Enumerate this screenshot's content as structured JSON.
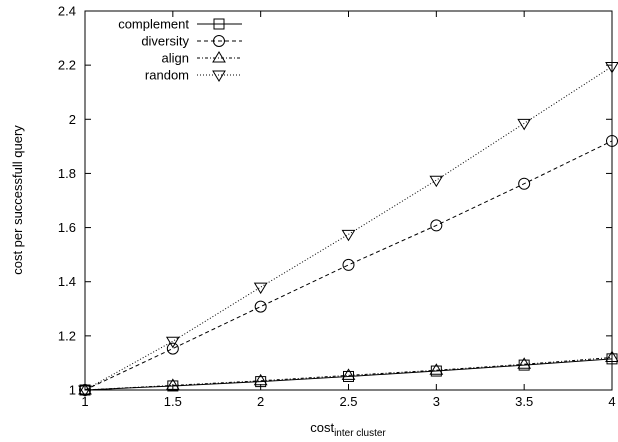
{
  "chart_data": {
    "type": "line",
    "xlabel": "cost",
    "xlabel_subscript": "inter cluster",
    "ylabel": "cost per successfull query",
    "xlim": [
      1,
      4
    ],
    "ylim": [
      1,
      2.4
    ],
    "x_ticks": [
      "1",
      "1.5",
      "2",
      "2.5",
      "3",
      "3.5",
      "4"
    ],
    "y_ticks": [
      "1",
      "1.2",
      "1.4",
      "1.6",
      "1.8",
      "2",
      "2.2",
      "2.4"
    ],
    "grid": false,
    "legend_position": "top-left",
    "x": [
      1,
      1.5,
      2,
      2.5,
      3,
      3.5,
      4
    ],
    "series": [
      {
        "name": "complement",
        "marker": "square",
        "dash": "solid",
        "values": [
          1.0,
          1.015,
          1.031,
          1.05,
          1.07,
          1.092,
          1.115
        ]
      },
      {
        "name": "diversity",
        "marker": "circle",
        "dash": "dashed",
        "values": [
          1.0,
          1.153,
          1.308,
          1.462,
          1.608,
          1.762,
          1.92
        ]
      },
      {
        "name": "align",
        "marker": "triangle-up",
        "dash": "dashdot",
        "values": [
          1.0,
          1.017,
          1.034,
          1.054,
          1.073,
          1.095,
          1.12
        ]
      },
      {
        "name": "random",
        "marker": "triangle-down",
        "dash": "dotted",
        "values": [
          1.0,
          1.18,
          1.38,
          1.575,
          1.775,
          1.985,
          2.195
        ]
      }
    ]
  }
}
